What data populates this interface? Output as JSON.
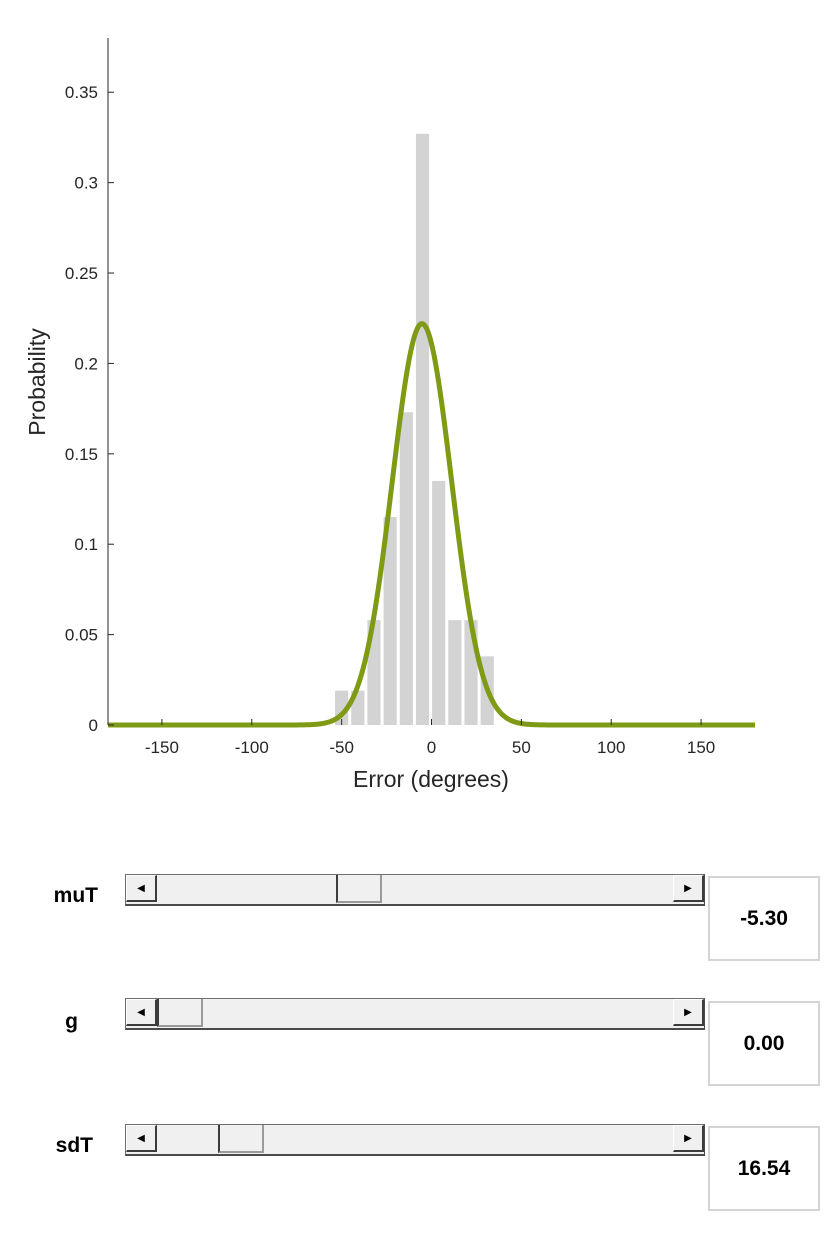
{
  "chart_data": {
    "type": "bar",
    "xlabel": "Error (degrees)",
    "ylabel": "Probability",
    "xlim": [
      -180,
      180
    ],
    "ylim": [
      0,
      0.38
    ],
    "x_ticks": [
      -150,
      -100,
      -50,
      0,
      50,
      100,
      150
    ],
    "y_ticks": [
      0,
      0.05,
      0.1,
      0.15,
      0.2,
      0.25,
      0.3,
      0.35
    ],
    "x_tick_labels": [
      "-150",
      "-100",
      "-50",
      "0",
      "50",
      "100",
      "150"
    ],
    "y_tick_labels": [
      "0",
      "0.05",
      "0.1",
      "0.15",
      "0.2",
      "0.25",
      "0.3",
      "0.35"
    ],
    "histogram": {
      "bin_centers": [
        -50,
        -41,
        -32,
        -23,
        -14,
        -5,
        4,
        13,
        22,
        31
      ],
      "bin_width": 9,
      "values": [
        0.019,
        0.019,
        0.058,
        0.115,
        0.173,
        0.327,
        0.135,
        0.058,
        0.058,
        0.038
      ],
      "color": "#d3d3d3"
    },
    "fit_curve": {
      "type": "line",
      "distribution": "normal",
      "mean": -5.3,
      "sd": 16.54,
      "peak": 0.222,
      "color": "#7f9a14"
    }
  },
  "controls": [
    {
      "label": "muT",
      "value": "-5.30",
      "slider_fraction": 0.38
    },
    {
      "label": "g",
      "value": "0.00",
      "slider_fraction": 0.0
    },
    {
      "label": "sdT",
      "value": "16.54",
      "slider_fraction": 0.13
    }
  ],
  "icons": {
    "left_arrow": "left-arrow-icon",
    "right_arrow": "right-arrow-icon"
  }
}
